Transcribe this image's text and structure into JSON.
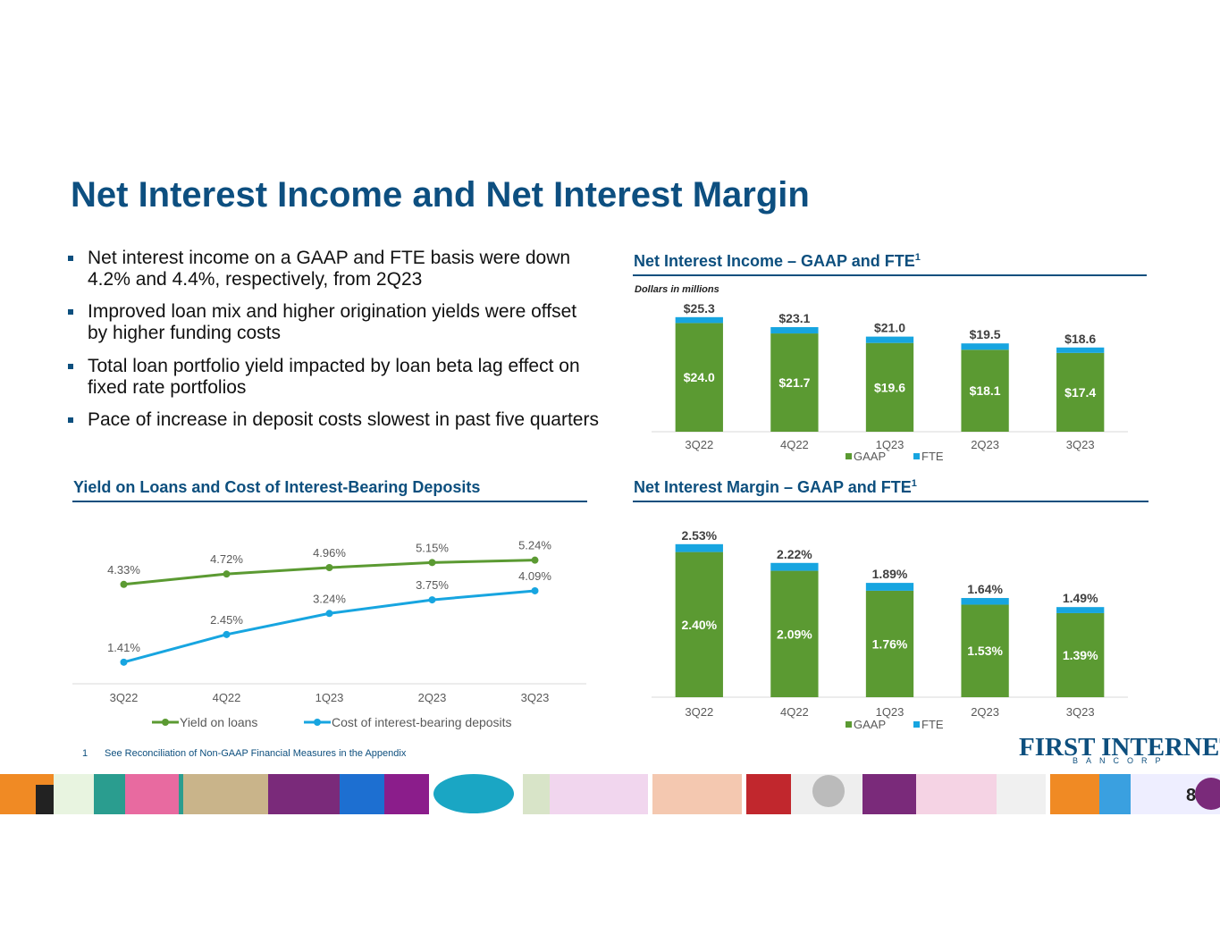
{
  "slide": {
    "title": "Net Interest Income and Net Interest Margin",
    "bullets": [
      "Net interest income on a GAAP and FTE basis were down 4.2% and 4.4%, respectively, from 2Q23",
      "Improved loan mix and higher origination yields were offset by higher funding costs",
      "Total loan portfolio yield impacted by loan beta lag effect on fixed rate portfolios",
      "Pace of increase in deposit costs slowest in past five quarters"
    ],
    "footnote": {
      "number": "1",
      "text": "See Reconciliation of Non-GAAP Financial Measures in the Appendix"
    },
    "logo": {
      "name": "FIRST INTERNET",
      "tagline": "BANCORP"
    },
    "page_number": 8
  },
  "chart_data": [
    {
      "type": "bar",
      "stacked": true,
      "title": "Net Interest Income – GAAP and FTE",
      "title_note": "1",
      "subtitle": "Dollars in millions",
      "categories": [
        "3Q22",
        "4Q22",
        "1Q23",
        "2Q23",
        "3Q23"
      ],
      "series": [
        {
          "name": "GAAP",
          "color": "#5b9a32",
          "values": [
            24.0,
            21.7,
            19.6,
            18.1,
            17.4
          ],
          "value_labels": [
            "$24.0",
            "$21.7",
            "$19.6",
            "$18.1",
            "$17.4"
          ]
        },
        {
          "name": "FTE",
          "color": "#17a5e0",
          "values": [
            1.3,
            1.4,
            1.4,
            1.4,
            1.2
          ]
        }
      ],
      "totals": {
        "values": [
          25.3,
          23.1,
          21.0,
          19.5,
          18.6
        ],
        "labels": [
          "$25.3",
          "$23.1",
          "$21.0",
          "$19.5",
          "$18.6"
        ]
      },
      "ylim": [
        0,
        30
      ]
    },
    {
      "type": "line",
      "title": "Yield on Loans and Cost of Interest-Bearing Deposits",
      "categories": [
        "3Q22",
        "4Q22",
        "1Q23",
        "2Q23",
        "3Q23"
      ],
      "series": [
        {
          "name": "Yield on loans",
          "color": "#5b9a32",
          "values": [
            4.33,
            4.72,
            4.96,
            5.15,
            5.24
          ],
          "value_labels": [
            "4.33%",
            "4.72%",
            "4.96%",
            "5.15%",
            "5.24%"
          ]
        },
        {
          "name": "Cost of interest-bearing deposits",
          "color": "#17a5e0",
          "values": [
            1.41,
            2.45,
            3.24,
            3.75,
            4.09
          ],
          "value_labels": [
            "1.41%",
            "2.45%",
            "3.24%",
            "3.75%",
            "4.09%"
          ]
        }
      ],
      "ylim": [
        0.6,
        6.0
      ]
    },
    {
      "type": "bar",
      "stacked": true,
      "title": "Net Interest Margin – GAAP and FTE",
      "title_note": "1",
      "categories": [
        "3Q22",
        "4Q22",
        "1Q23",
        "2Q23",
        "3Q23"
      ],
      "series": [
        {
          "name": "GAAP",
          "color": "#5b9a32",
          "values": [
            2.4,
            2.09,
            1.76,
            1.53,
            1.39
          ],
          "value_labels": [
            "2.40%",
            "2.09%",
            "1.76%",
            "1.53%",
            "1.39%"
          ]
        },
        {
          "name": "FTE",
          "color": "#17a5e0",
          "values": [
            0.13,
            0.13,
            0.13,
            0.11,
            0.1
          ]
        }
      ],
      "totals": {
        "values": [
          2.53,
          2.22,
          1.89,
          1.64,
          1.49
        ],
        "labels": [
          "2.53%",
          "2.22%",
          "1.89%",
          "1.64%",
          "1.49%"
        ]
      },
      "ylim": [
        0,
        3
      ]
    }
  ]
}
